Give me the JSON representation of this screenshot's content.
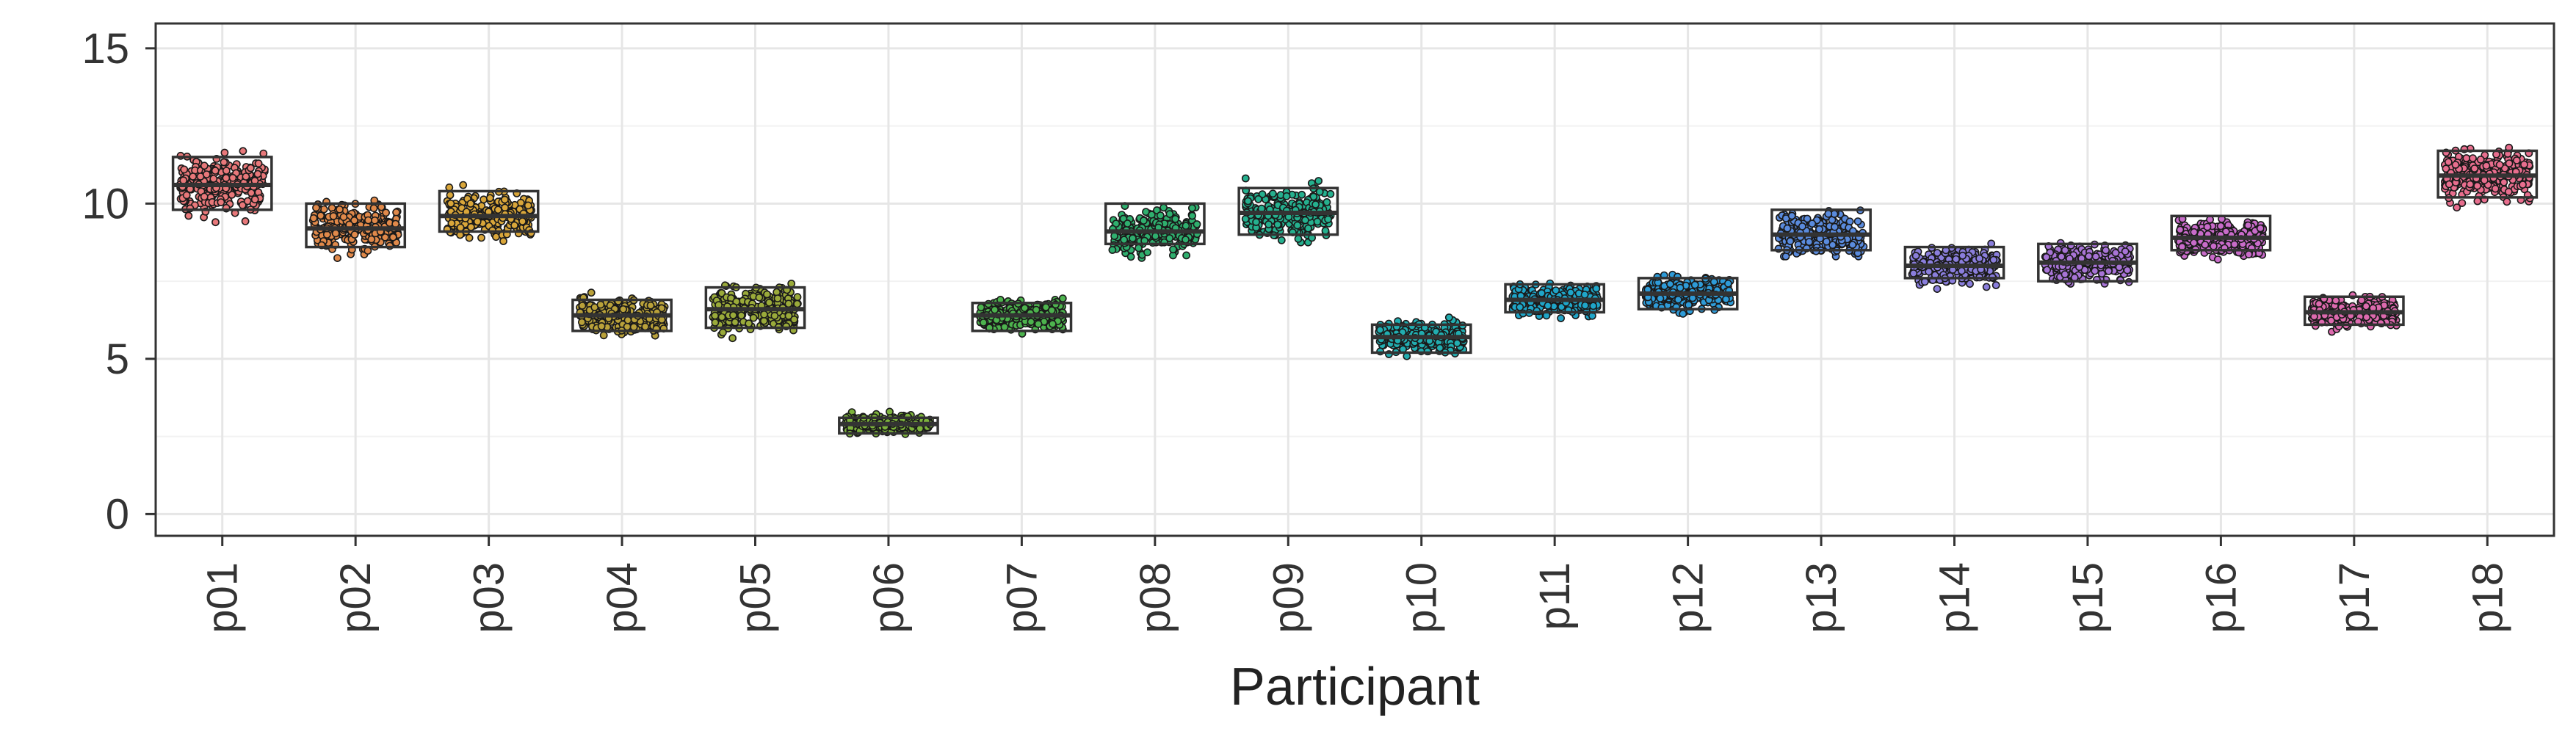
{
  "chart_data": {
    "type": "box-jitter",
    "title": "",
    "xlabel": "Participant",
    "ylabel": "",
    "ylim": [
      -0.7,
      15.8
    ],
    "yticks": [
      0,
      5,
      10,
      15
    ],
    "grid": true,
    "legend": "none",
    "categories": [
      "p01",
      "p02",
      "p03",
      "p04",
      "p05",
      "p06",
      "p07",
      "p08",
      "p09",
      "p10",
      "p11",
      "p12",
      "p13",
      "p14",
      "p15",
      "p16",
      "p17",
      "p18"
    ],
    "series": [
      {
        "category": "p01",
        "color": "#E8787A",
        "q1": 9.8,
        "median": 10.6,
        "q3": 11.5,
        "min": 9.4,
        "max": 12.3
      },
      {
        "category": "p02",
        "color": "#E0894A",
        "q1": 8.6,
        "median": 9.2,
        "q3": 10.0,
        "min": 8.2,
        "max": 10.7
      },
      {
        "category": "p03",
        "color": "#D9A63A",
        "q1": 9.1,
        "median": 9.6,
        "q3": 10.4,
        "min": 8.7,
        "max": 10.9
      },
      {
        "category": "p04",
        "color": "#B9A13A",
        "q1": 5.9,
        "median": 6.4,
        "q3": 6.9,
        "min": 5.2,
        "max": 7.4
      },
      {
        "category": "p05",
        "color": "#9AAA3A",
        "q1": 6.0,
        "median": 6.6,
        "q3": 7.3,
        "min": 5.6,
        "max": 7.9
      },
      {
        "category": "p06",
        "color": "#7DB33C",
        "q1": 2.6,
        "median": 2.9,
        "q3": 3.1,
        "min": 2.4,
        "max": 3.4
      },
      {
        "category": "p07",
        "color": "#4DB34E",
        "q1": 5.9,
        "median": 6.4,
        "q3": 6.8,
        "min": 5.0,
        "max": 7.7
      },
      {
        "category": "p08",
        "color": "#2FAF6E",
        "q1": 8.7,
        "median": 9.1,
        "q3": 10.0,
        "min": 8.1,
        "max": 10.7
      },
      {
        "category": "p09",
        "color": "#25B08E",
        "q1": 9.0,
        "median": 9.7,
        "q3": 10.5,
        "min": 8.1,
        "max": 11.5
      },
      {
        "category": "p10",
        "color": "#22ADB0",
        "q1": 5.2,
        "median": 5.7,
        "q3": 6.1,
        "min": 4.5,
        "max": 6.7
      },
      {
        "category": "p11",
        "color": "#1FA5C8",
        "q1": 6.5,
        "median": 6.9,
        "q3": 7.4,
        "min": 5.7,
        "max": 8.2
      },
      {
        "category": "p12",
        "color": "#2E9BD8",
        "q1": 6.6,
        "median": 7.1,
        "q3": 7.6,
        "min": 6.4,
        "max": 7.9
      },
      {
        "category": "p13",
        "color": "#5A8BDD",
        "q1": 8.5,
        "median": 9.0,
        "q3": 9.8,
        "min": 8.3,
        "max": 10.6
      },
      {
        "category": "p14",
        "color": "#8A7EDC",
        "q1": 7.6,
        "median": 8.0,
        "q3": 8.6,
        "min": 7.1,
        "max": 9.0
      },
      {
        "category": "p15",
        "color": "#A874D6",
        "q1": 7.5,
        "median": 8.1,
        "q3": 8.7,
        "min": 7.1,
        "max": 9.1
      },
      {
        "category": "p16",
        "color": "#C86BC9",
        "q1": 8.5,
        "median": 8.9,
        "q3": 9.6,
        "min": 8.2,
        "max": 10.3
      },
      {
        "category": "p17",
        "color": "#DD6AAE",
        "q1": 6.1,
        "median": 6.5,
        "q3": 7.0,
        "min": 5.2,
        "max": 7.6
      },
      {
        "category": "p18",
        "color": "#E86E8E",
        "q1": 10.2,
        "median": 10.9,
        "q3": 11.7,
        "min": 9.2,
        "max": 12.5
      }
    ]
  }
}
